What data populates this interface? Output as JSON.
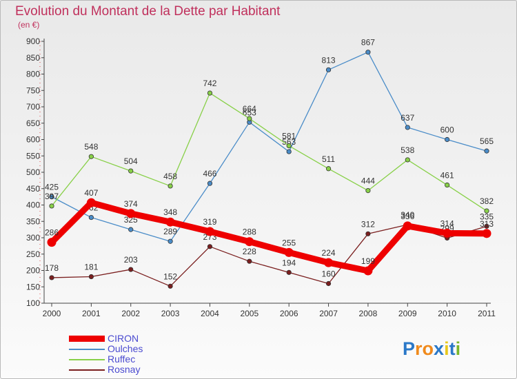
{
  "title": "Evolution du Montant de la Dette par Habitant",
  "subtitle": "(en €)",
  "logo": {
    "text": "Proxiti",
    "letters": [
      "P",
      "r",
      "o",
      "x",
      "i",
      "t",
      "i"
    ],
    "colors": [
      "#2a78c8",
      "#f08a1c",
      "#f08a1c",
      "#2a78c8",
      "#e8c81c",
      "#2a78c8",
      "#7ab62a"
    ]
  },
  "chart_data": {
    "type": "line",
    "title": "Evolution du Montant de la Dette par Habitant",
    "ylabel": "(en €)",
    "xlabel": "",
    "categories": [
      "2000",
      "2001",
      "2002",
      "2003",
      "2004",
      "2005",
      "2006",
      "2007",
      "2008",
      "2009",
      "2010",
      "2011"
    ],
    "ylim": [
      100,
      900
    ],
    "yticks": [
      100,
      150,
      200,
      250,
      300,
      350,
      400,
      450,
      500,
      550,
      600,
      650,
      700,
      750,
      800,
      850,
      900
    ],
    "grid": false,
    "legend_position": "bottom-left",
    "series": [
      {
        "name": "Oulches",
        "color": "#4a8cc8",
        "values": [
          425,
          362,
          325,
          289,
          466,
          653,
          563,
          813,
          867,
          637,
          600,
          565
        ]
      },
      {
        "name": "Ruffec",
        "color": "#88d048",
        "values": [
          397,
          548,
          504,
          458,
          742,
          664,
          581,
          511,
          444,
          538,
          461,
          382
        ]
      },
      {
        "name": "Rosnay",
        "color": "#7a1e1e",
        "values": [
          178,
          181,
          203,
          152,
          273,
          228,
          194,
          160,
          312,
          340,
          299,
          335
        ]
      },
      {
        "name": "CIRON",
        "color": "#ee0000",
        "values": [
          286,
          407,
          374,
          348,
          319,
          288,
          255,
          224,
          199,
          336,
          314,
          313
        ]
      }
    ],
    "legend_order": [
      "CIRON",
      "Oulches",
      "Ruffec",
      "Rosnay"
    ]
  }
}
